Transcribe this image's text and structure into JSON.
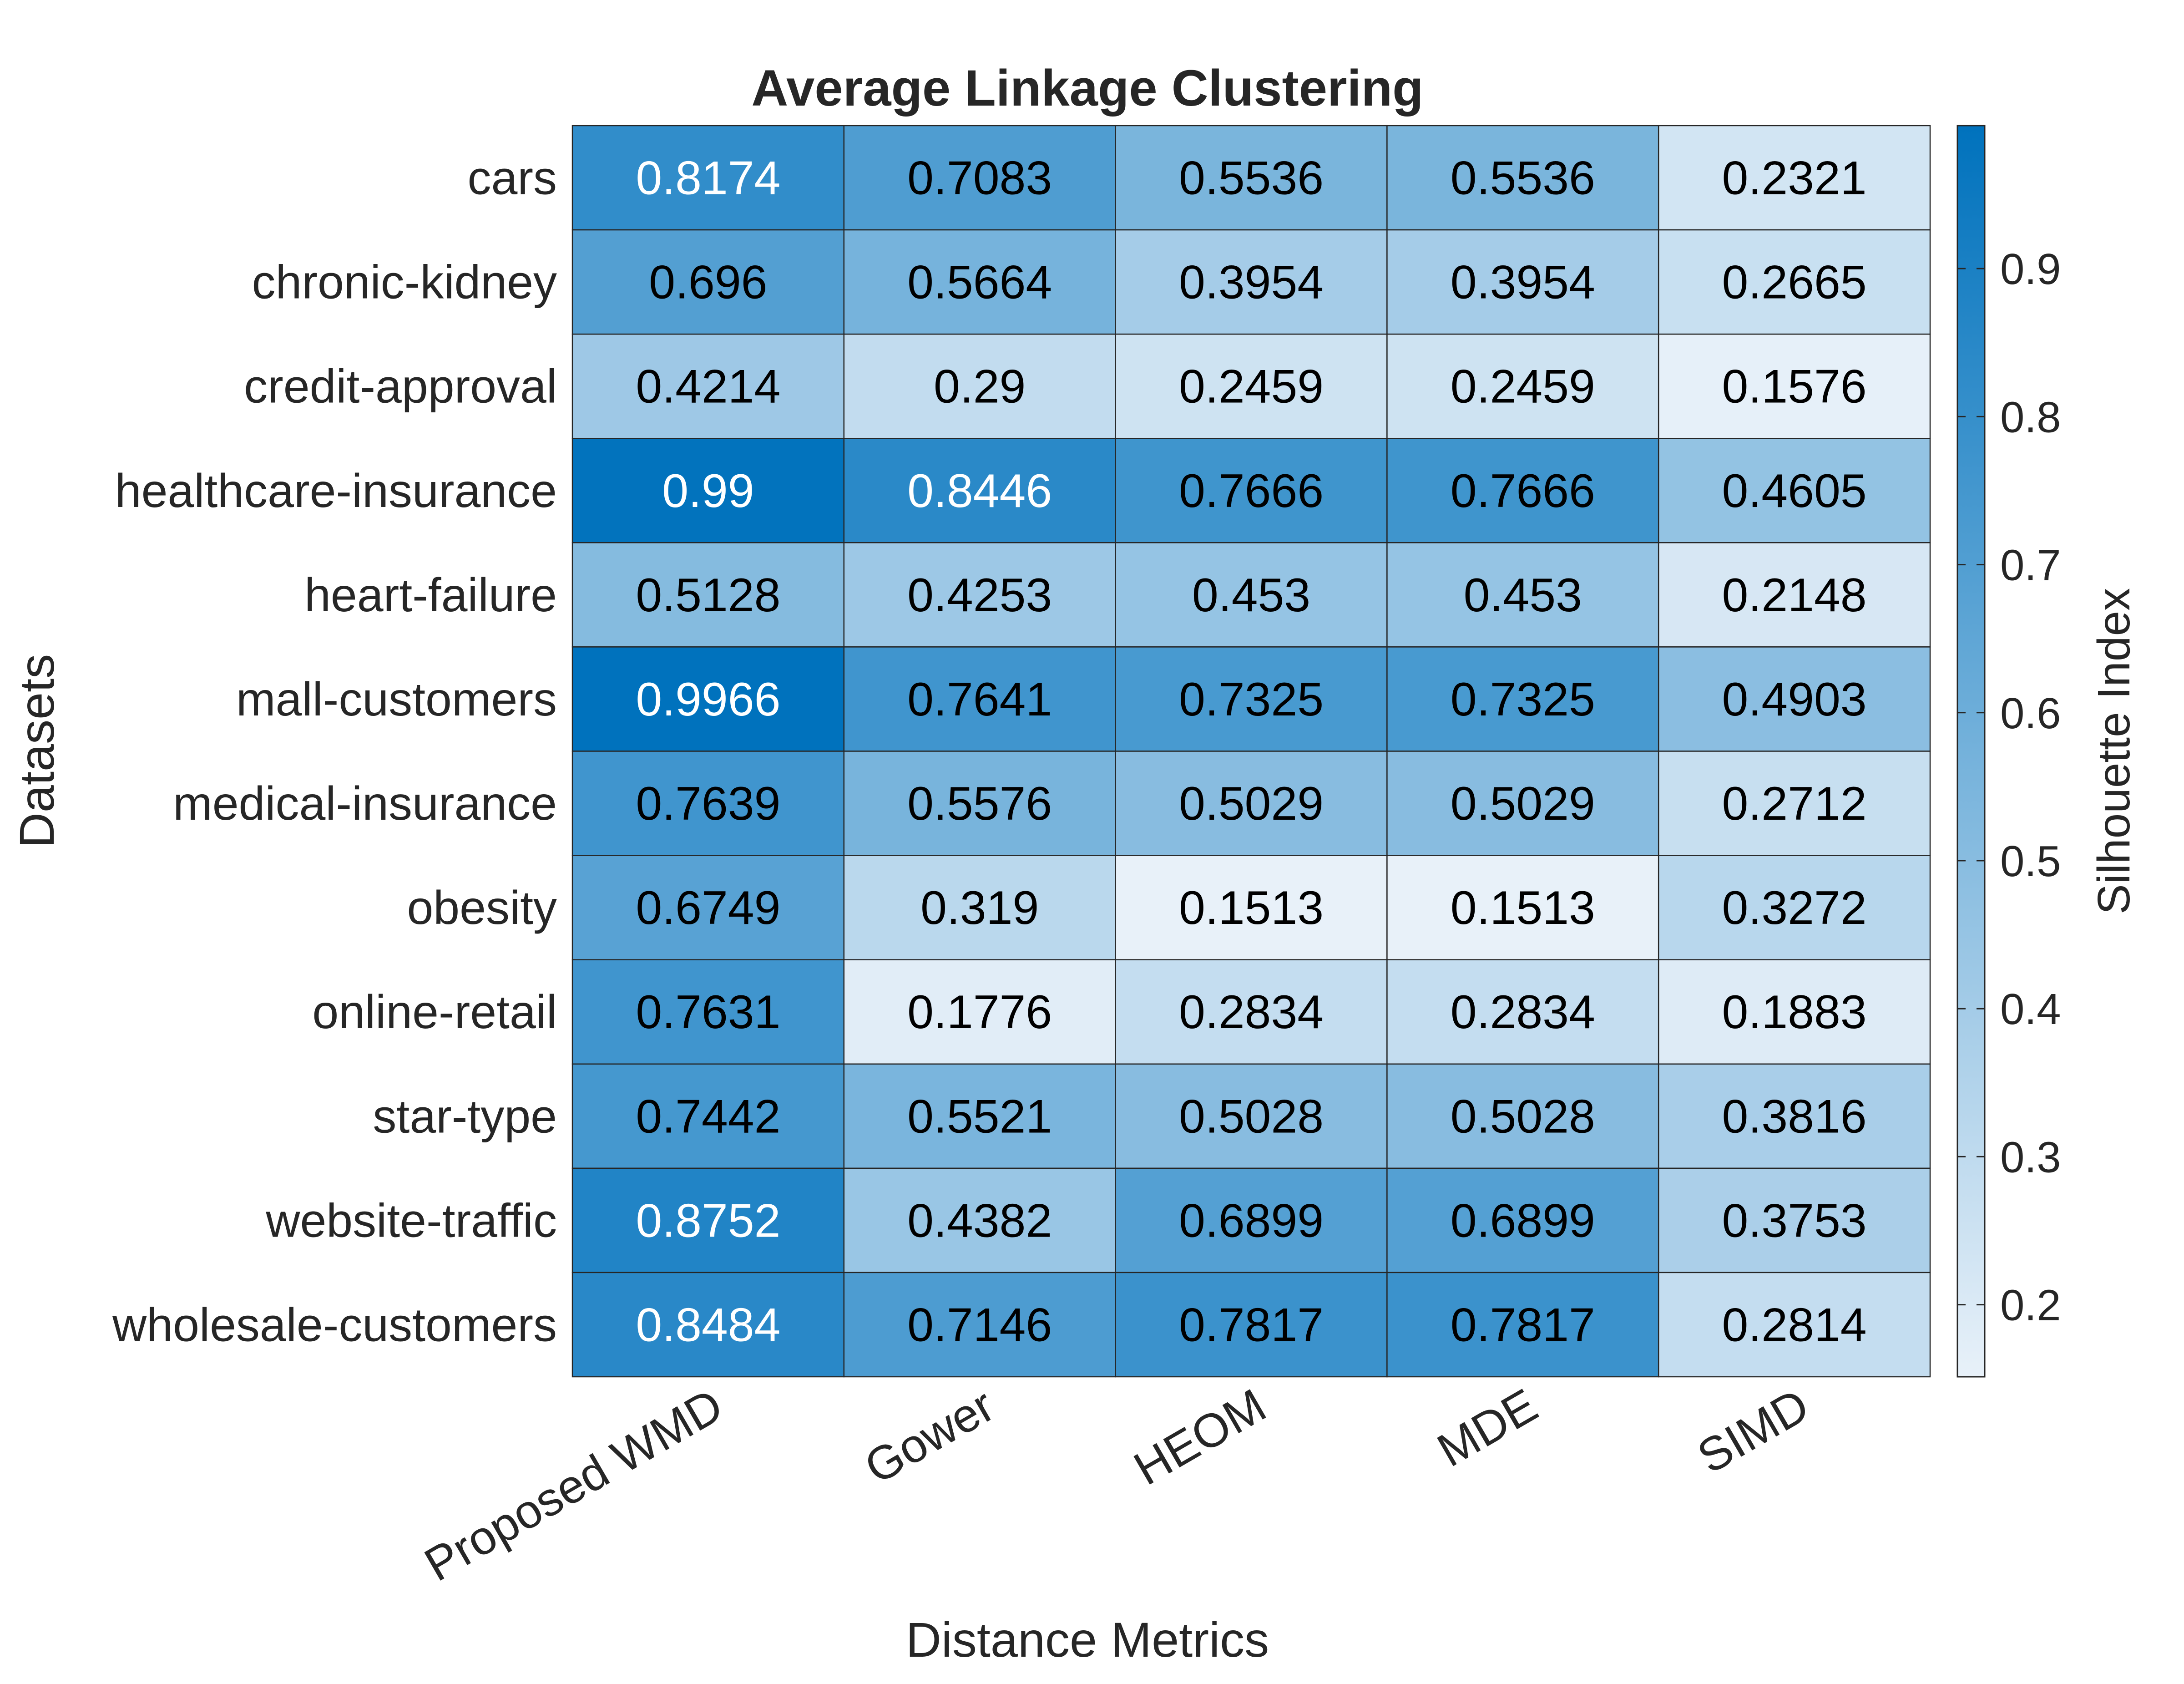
{
  "chart_data": {
    "type": "heatmap",
    "title": "Average Linkage Clustering",
    "xlabel": "Distance Metrics",
    "ylabel": "Datasets",
    "x": [
      "Proposed WMD",
      "Gower",
      "HEOM",
      "MDE",
      "SIMD"
    ],
    "y": [
      "cars",
      "chronic-kidney",
      "credit-approval",
      "healthcare-insurance",
      "heart-failure",
      "mall-customers",
      "medical-insurance",
      "obesity",
      "online-retail",
      "star-type",
      "website-traffic",
      "wholesale-customers"
    ],
    "values": [
      [
        0.8174,
        0.7083,
        0.5536,
        0.5536,
        0.2321
      ],
      [
        0.696,
        0.5664,
        0.3954,
        0.3954,
        0.2665
      ],
      [
        0.4214,
        0.29,
        0.2459,
        0.2459,
        0.1576
      ],
      [
        0.99,
        0.8446,
        0.7666,
        0.7666,
        0.4605
      ],
      [
        0.5128,
        0.4253,
        0.453,
        0.453,
        0.2148
      ],
      [
        0.9966,
        0.7641,
        0.7325,
        0.7325,
        0.4903
      ],
      [
        0.7639,
        0.5576,
        0.5029,
        0.5029,
        0.2712
      ],
      [
        0.6749,
        0.319,
        0.1513,
        0.1513,
        0.3272
      ],
      [
        0.7631,
        0.1776,
        0.2834,
        0.2834,
        0.1883
      ],
      [
        0.7442,
        0.5521,
        0.5028,
        0.5028,
        0.3816
      ],
      [
        0.8752,
        0.4382,
        0.6899,
        0.6899,
        0.3753
      ],
      [
        0.8484,
        0.7146,
        0.7817,
        0.7817,
        0.2814
      ]
    ],
    "colorbar": {
      "label": "Silhouette Index",
      "range": [
        0.1513,
        0.9966
      ],
      "ticks": [
        0.2,
        0.3,
        0.4,
        0.5,
        0.6,
        0.7,
        0.8,
        0.9
      ],
      "tick_labels": [
        "0.2",
        "0.3",
        "0.4",
        "0.5",
        "0.6",
        "0.7",
        "0.8",
        "0.9"
      ],
      "color_low": "#e8f1f9",
      "color_high": "#0072bd"
    },
    "text_color_dark": "#000000",
    "text_color_light": "#ffffff",
    "grid": true,
    "legend": "colorbar-right"
  }
}
